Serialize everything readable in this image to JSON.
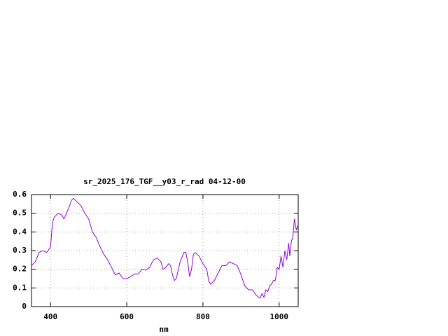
{
  "chart_data": {
    "type": "line",
    "title": "sr_2025_176_TGF__y03_r_rad 04-12-00",
    "x_label": "nm",
    "x": [
      350,
      360,
      370,
      380,
      390,
      400,
      405,
      410,
      420,
      430,
      435,
      440,
      450,
      455,
      460,
      470,
      480,
      490,
      500,
      510,
      520,
      530,
      540,
      550,
      560,
      570,
      580,
      590,
      600,
      610,
      620,
      630,
      640,
      650,
      660,
      670,
      680,
      690,
      695,
      700,
      710,
      715,
      720,
      725,
      730,
      740,
      750,
      755,
      760,
      765,
      770,
      775,
      780,
      790,
      800,
      810,
      815,
      820,
      830,
      840,
      850,
      860,
      870,
      880,
      890,
      900,
      910,
      920,
      930,
      940,
      950,
      955,
      960,
      965,
      970,
      975,
      980,
      985,
      990,
      995,
      1000,
      1005,
      1010,
      1015,
      1020,
      1025,
      1028,
      1032,
      1036,
      1040,
      1045,
      1050
    ],
    "values": [
      0.22,
      0.24,
      0.29,
      0.3,
      0.29,
      0.32,
      0.45,
      0.48,
      0.5,
      0.49,
      0.47,
      0.49,
      0.54,
      0.57,
      0.58,
      0.56,
      0.54,
      0.5,
      0.47,
      0.4,
      0.37,
      0.32,
      0.28,
      0.25,
      0.21,
      0.17,
      0.18,
      0.15,
      0.15,
      0.16,
      0.175,
      0.175,
      0.2,
      0.195,
      0.21,
      0.25,
      0.26,
      0.24,
      0.2,
      0.205,
      0.23,
      0.22,
      0.17,
      0.14,
      0.15,
      0.24,
      0.29,
      0.29,
      0.24,
      0.16,
      0.2,
      0.28,
      0.29,
      0.27,
      0.23,
      0.2,
      0.14,
      0.12,
      0.14,
      0.18,
      0.22,
      0.22,
      0.24,
      0.23,
      0.22,
      0.17,
      0.11,
      0.09,
      0.09,
      0.06,
      0.045,
      0.07,
      0.05,
      0.09,
      0.08,
      0.11,
      0.12,
      0.14,
      0.14,
      0.21,
      0.2,
      0.27,
      0.21,
      0.3,
      0.25,
      0.34,
      0.27,
      0.35,
      0.37,
      0.47,
      0.41,
      0.44
    ],
    "color": "#9400d3",
    "xlim": [
      350,
      1050
    ],
    "xticks": [
      400,
      600,
      800,
      1000
    ],
    "ylim": [
      0,
      0.6
    ],
    "yticks": [
      0,
      0.1,
      0.2,
      0.3,
      0.4,
      0.5,
      0.6
    ],
    "grid": true
  }
}
